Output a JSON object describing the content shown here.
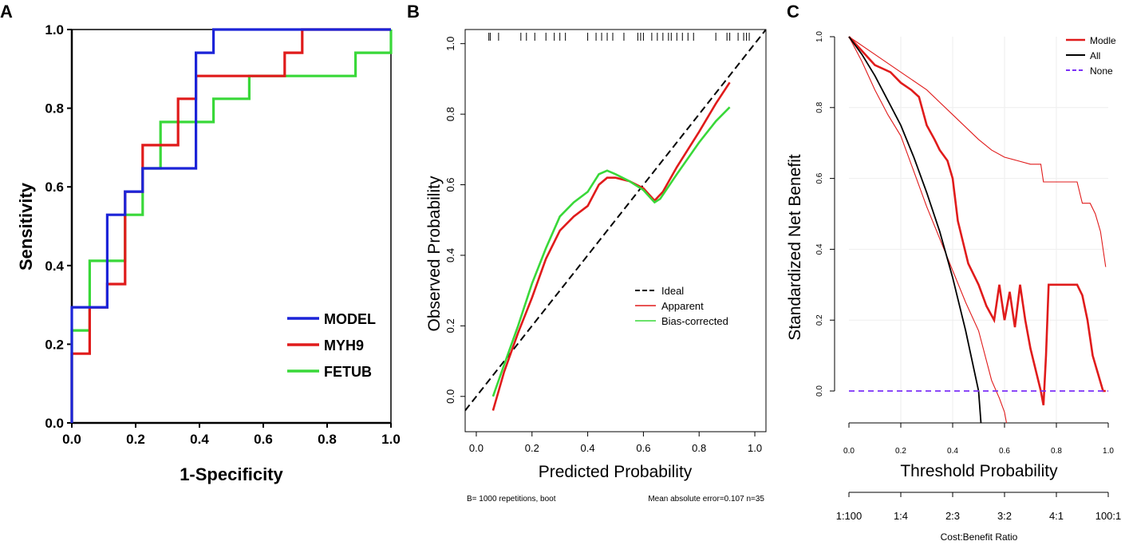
{
  "chart_data": [
    {
      "panel": "A",
      "type": "line",
      "step": true,
      "xlabel": "1-Specificity",
      "ylabel": "Sensitivity",
      "xlim": [
        0,
        1
      ],
      "ylim": [
        0,
        1
      ],
      "xticks": [
        "0.0",
        "0.2",
        "0.4",
        "0.6",
        "0.8",
        "1.0"
      ],
      "yticks": [
        "0.0",
        "0.2",
        "0.4",
        "0.6",
        "0.8",
        "1.0"
      ],
      "legend_position": "bottom-right",
      "series": [
        {
          "name": "MODEL",
          "color": "#1c24d8",
          "x": [
            0,
            0,
            0.111,
            0.111,
            0.167,
            0.167,
            0.222,
            0.222,
            0.389,
            0.389,
            0.444,
            0.444,
            1.0
          ],
          "y": [
            0,
            0.294,
            0.294,
            0.529,
            0.529,
            0.588,
            0.588,
            0.647,
            0.647,
            0.941,
            0.941,
            1.0,
            1.0
          ]
        },
        {
          "name": "MYH9",
          "color": "#e01b1b",
          "x": [
            0,
            0,
            0.056,
            0.056,
            0.111,
            0.111,
            0.167,
            0.167,
            0.222,
            0.222,
            0.333,
            0.333,
            0.389,
            0.389,
            0.667,
            0.667,
            0.722,
            0.722,
            1.0
          ],
          "y": [
            0,
            0.176,
            0.176,
            0.294,
            0.294,
            0.353,
            0.353,
            0.588,
            0.588,
            0.706,
            0.706,
            0.824,
            0.824,
            0.882,
            0.882,
            0.941,
            0.941,
            1.0,
            1.0
          ]
        },
        {
          "name": "FETUB",
          "color": "#39d839",
          "x": [
            0,
            0,
            0.056,
            0.056,
            0.167,
            0.167,
            0.222,
            0.222,
            0.278,
            0.278,
            0.444,
            0.444,
            0.556,
            0.556,
            0.667,
            0.667,
            0.889,
            0.889,
            1.0,
            1.0
          ],
          "y": [
            0,
            0.235,
            0.235,
            0.412,
            0.412,
            0.529,
            0.529,
            0.647,
            0.647,
            0.765,
            0.765,
            0.824,
            0.824,
            0.882,
            0.882,
            0.882,
            0.882,
            0.941,
            0.941,
            1.0
          ]
        }
      ]
    },
    {
      "panel": "B",
      "type": "line",
      "xlabel": "Predicted Probability",
      "ylabel": "Observed Probability",
      "xlim": [
        -0.04,
        1.04
      ],
      "ylim": [
        -0.1,
        1.04
      ],
      "xticks": [
        "0.0",
        "0.2",
        "0.4",
        "0.6",
        "0.8",
        "1.0"
      ],
      "yticks": [
        "0.0",
        "0.2",
        "0.4",
        "0.6",
        "0.8",
        "1.0"
      ],
      "legend_position": "center-right",
      "footnote_left": "B= 1000 repetitions, boot",
      "footnote_right": "Mean absolute error=0.107 n=35",
      "rug": [
        0.045,
        0.05,
        0.08,
        0.16,
        0.18,
        0.21,
        0.25,
        0.28,
        0.3,
        0.32,
        0.4,
        0.43,
        0.45,
        0.47,
        0.49,
        0.53,
        0.58,
        0.59,
        0.6,
        0.63,
        0.65,
        0.67,
        0.69,
        0.7,
        0.72,
        0.74,
        0.76,
        0.78,
        0.86,
        0.9,
        0.91,
        0.94,
        0.96,
        0.97,
        0.98
      ],
      "series": [
        {
          "name": "Ideal",
          "color": "#000000",
          "dash": true,
          "x": [
            -0.04,
            1.04
          ],
          "y": [
            -0.04,
            1.04
          ]
        },
        {
          "name": "Apparent",
          "color": "#e01b1b",
          "x": [
            0.06,
            0.1,
            0.15,
            0.2,
            0.25,
            0.3,
            0.35,
            0.4,
            0.44,
            0.47,
            0.5,
            0.55,
            0.6,
            0.64,
            0.67,
            0.72,
            0.8,
            0.86,
            0.91
          ],
          "y": [
            -0.04,
            0.07,
            0.18,
            0.28,
            0.39,
            0.47,
            0.51,
            0.54,
            0.6,
            0.62,
            0.62,
            0.61,
            0.59,
            0.555,
            0.58,
            0.65,
            0.75,
            0.83,
            0.89
          ]
        },
        {
          "name": "Bias-corrected",
          "color": "#39d839",
          "x": [
            0.06,
            0.1,
            0.15,
            0.2,
            0.25,
            0.3,
            0.35,
            0.4,
            0.44,
            0.47,
            0.5,
            0.55,
            0.6,
            0.64,
            0.66,
            0.72,
            0.8,
            0.86,
            0.91
          ],
          "y": [
            0.0,
            0.09,
            0.2,
            0.32,
            0.42,
            0.51,
            0.55,
            0.58,
            0.63,
            0.64,
            0.63,
            0.61,
            0.585,
            0.55,
            0.56,
            0.63,
            0.72,
            0.78,
            0.82
          ]
        }
      ]
    },
    {
      "panel": "C",
      "type": "line",
      "xlabel": "Threshold Probability",
      "ylabel": "Standardized Net Benefit",
      "xlim": [
        0,
        1
      ],
      "ylim": [
        -0.1,
        1.0
      ],
      "xticks": [
        "0.0",
        "0.2",
        "0.4",
        "0.6",
        "0.8",
        "1.0"
      ],
      "yticks": [
        "0.0",
        "0.2",
        "0.4",
        "0.6",
        "0.8",
        "1.0"
      ],
      "cost_benefit_label": "Cost:Benefit Ratio",
      "cost_benefit_ticks": [
        "1:100",
        "1:4",
        "2:3",
        "3:2",
        "4:1",
        "100:1"
      ],
      "legend_position": "top-right",
      "series": [
        {
          "name": "Modle",
          "color": "#e01b1b",
          "x": [
            0,
            0.05,
            0.1,
            0.13,
            0.16,
            0.2,
            0.24,
            0.27,
            0.3,
            0.33,
            0.35,
            0.38,
            0.4,
            0.42,
            0.44,
            0.46,
            0.5,
            0.53,
            0.56,
            0.58,
            0.6,
            0.62,
            0.64,
            0.66,
            0.68,
            0.7,
            0.72,
            0.74,
            0.75,
            0.76,
            0.77,
            0.88,
            0.9,
            0.92,
            0.94,
            0.96,
            0.98,
            0.99
          ],
          "y": [
            1.0,
            0.96,
            0.92,
            0.91,
            0.9,
            0.87,
            0.85,
            0.83,
            0.75,
            0.71,
            0.68,
            0.65,
            0.6,
            0.48,
            0.42,
            0.36,
            0.3,
            0.24,
            0.2,
            0.3,
            0.2,
            0.28,
            0.18,
            0.3,
            0.2,
            0.12,
            0.06,
            0.0,
            -0.04,
            0.1,
            0.3,
            0.3,
            0.27,
            0.2,
            0.1,
            0.05,
            0.0,
            0.0
          ]
        },
        {
          "name": "Modle (upper CI)",
          "color": "#e01b1b",
          "legend": false,
          "x": [
            0,
            0.1,
            0.2,
            0.3,
            0.4,
            0.5,
            0.55,
            0.6,
            0.65,
            0.7,
            0.74,
            0.75,
            0.88,
            0.9,
            0.93,
            0.95,
            0.97,
            0.99
          ],
          "y": [
            1.0,
            0.95,
            0.9,
            0.85,
            0.78,
            0.71,
            0.68,
            0.66,
            0.65,
            0.64,
            0.64,
            0.59,
            0.59,
            0.53,
            0.53,
            0.5,
            0.45,
            0.35
          ]
        },
        {
          "name": "Modle (lower CI)",
          "color": "#e01b1b",
          "legend": false,
          "x": [
            0,
            0.05,
            0.1,
            0.15,
            0.2,
            0.25,
            0.3,
            0.35,
            0.4,
            0.45,
            0.5,
            0.55,
            0.58,
            0.6,
            0.61
          ],
          "y": [
            1.0,
            0.93,
            0.85,
            0.78,
            0.72,
            0.62,
            0.52,
            0.43,
            0.34,
            0.25,
            0.17,
            0.03,
            -0.02,
            -0.06,
            -0.1
          ]
        },
        {
          "name": "All",
          "color": "#000000",
          "x": [
            0,
            0.05,
            0.1,
            0.15,
            0.2,
            0.25,
            0.3,
            0.35,
            0.4,
            0.45,
            0.5,
            0.51
          ],
          "y": [
            1.0,
            0.95,
            0.89,
            0.82,
            0.75,
            0.66,
            0.56,
            0.45,
            0.32,
            0.17,
            -0.0,
            -0.1
          ]
        },
        {
          "name": "None",
          "color": "#7b2ff7",
          "dash": true,
          "x": [
            0,
            1.0
          ],
          "y": [
            0,
            0
          ]
        }
      ]
    }
  ],
  "labels": {
    "panel_a": "A",
    "panel_b": "B",
    "panel_c": "C"
  }
}
